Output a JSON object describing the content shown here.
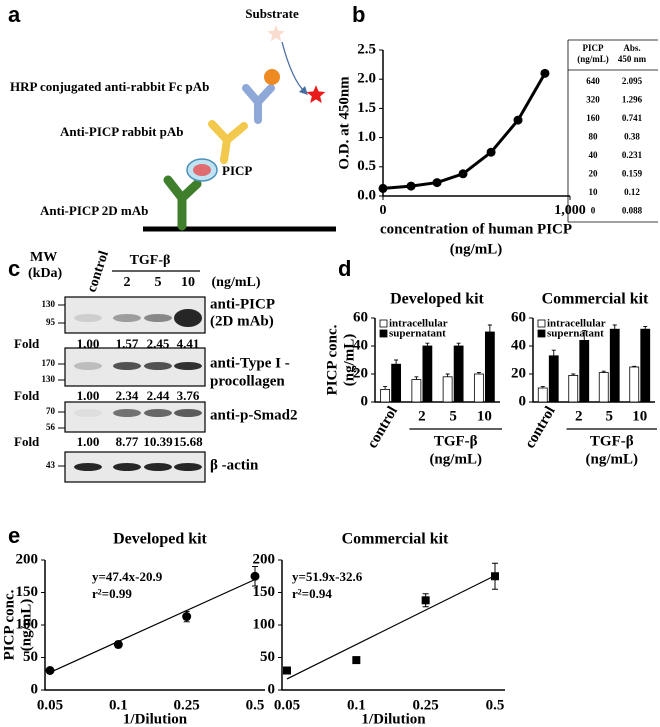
{
  "panel_labels": [
    "a",
    "b",
    "c",
    "d",
    "e"
  ],
  "diagram": {
    "substrate": "Substrate",
    "hrp": "HRP conjugated anti-rabbit Fc pAb",
    "rabbit": "Anti-PICP rabbit pAb",
    "antigen": "PICP",
    "capture": "Anti-PICP 2D mAb"
  },
  "table": {
    "header": [
      [
        "PICP",
        "(ng/mL)"
      ],
      [
        "Abs.",
        "450 nm"
      ]
    ],
    "rows": [
      [
        640,
        2.095
      ],
      [
        320,
        1.296
      ],
      [
        160,
        0.741
      ],
      [
        80,
        0.38
      ],
      [
        40,
        0.231
      ],
      [
        20,
        0.159
      ],
      [
        10,
        0.12
      ],
      [
        0,
        0.088
      ]
    ]
  },
  "blot": {
    "mw_title": [
      "MW",
      "(kDa)"
    ],
    "lanes": [
      "control",
      "2",
      "5",
      "10"
    ],
    "treatment": "TGF-β",
    "unit": "(ng/mL)",
    "fold_label": "Fold",
    "rows": [
      {
        "mw": [
          130,
          95
        ],
        "antibody": [
          "anti-PICP",
          "(2D mAb)"
        ],
        "fold": [
          "1.00",
          "1.57",
          "2.45",
          "4.41"
        ]
      },
      {
        "mw": [
          170,
          130
        ],
        "antibody": [
          "anti-Type I -",
          "procollagen"
        ],
        "fold": [
          "1.00",
          "2.34",
          "2.44",
          "3.76"
        ]
      },
      {
        "mw": [
          70,
          56
        ],
        "antibody": [
          "anti-p-Smad2"
        ],
        "fold": [
          "1.00",
          "8.77",
          "10.39",
          "15.68"
        ]
      },
      {
        "mw": [
          43
        ],
        "antibody": [
          "β -actin"
        ]
      }
    ]
  },
  "chart_data": [
    {
      "type": "line",
      "y_label": "O.D. at 450nm",
      "x_label": "concentration of human PICP",
      "x_unit": "(ng/mL)",
      "x": [
        0,
        150,
        289,
        428,
        578,
        722,
        866
      ],
      "values": [
        0.13,
        0.17,
        0.23,
        0.38,
        0.75,
        1.3,
        2.1
      ],
      "color": "#000000",
      "xlim": [
        0,
        1000
      ],
      "xticks": [
        0,
        {
          "value": 1000,
          "label": "1,000"
        }
      ],
      "ylim": [
        0,
        2.5
      ],
      "yticks": [
        {
          "value": 0,
          "label": "0.0"
        },
        0.5,
        {
          "value": 1,
          "label": "1.0"
        },
        1.5,
        {
          "value": 2,
          "label": "2.0"
        },
        2.5
      ]
    },
    {
      "type": "bar",
      "title": "Developed kit",
      "y_label": "PICP conc.",
      "y_unit": "(ng/mL)",
      "group_label": "TGF-β",
      "group_unit": "(ng/mL)",
      "categories": [
        "control",
        "2",
        "5",
        "10"
      ],
      "series": [
        {
          "name": "intracellular",
          "color": "#ffffff",
          "values": [
            9,
            16,
            18,
            20
          ],
          "errors": [
            2,
            2,
            2,
            1
          ]
        },
        {
          "name": "supernatant",
          "color": "#000000",
          "values": [
            27,
            40,
            40,
            50
          ],
          "errors": [
            3,
            2,
            2,
            5
          ]
        }
      ],
      "ylim": [
        0,
        60
      ],
      "yticks": [
        0,
        20,
        40,
        60
      ]
    },
    {
      "type": "bar",
      "title": "Commercial kit",
      "group_label": "TGF-β",
      "group_unit": "(ng/mL)",
      "categories": [
        "control",
        "2",
        "5",
        "10"
      ],
      "series": [
        {
          "name": "intracellular",
          "color": "#ffffff",
          "values": [
            10,
            19,
            21,
            25
          ],
          "errors": [
            1,
            1,
            1,
            0.5
          ]
        },
        {
          "name": "supernatant",
          "color": "#000000",
          "values": [
            33,
            44,
            52,
            52
          ],
          "errors": [
            4,
            7,
            3,
            2
          ]
        }
      ],
      "ylim": [
        0,
        60
      ],
      "yticks": [
        0,
        20,
        40,
        60
      ]
    },
    {
      "type": "scatter",
      "title": "Developed kit",
      "y_label": "PICP conc.",
      "y_unit": "(ng/mL)",
      "x_label": "1/Dilution",
      "equation": "y=47.4x-20.9",
      "r_squared": "r²=0.99",
      "marker": "circle",
      "categories": [
        "0.05",
        "0.1",
        "0.25",
        "0.5"
      ],
      "values": [
        30,
        70,
        113,
        175
      ],
      "errors": [
        0,
        5,
        8,
        15
      ],
      "trendline": [
        27,
        170
      ],
      "ylim": [
        0,
        200
      ],
      "yticks": [
        0,
        50,
        100,
        150,
        200
      ]
    },
    {
      "type": "scatter",
      "title": "Commercial kit",
      "x_label": "1/Dilution",
      "equation": "y=51.9x-32.6",
      "r_squared": "r²=0.94",
      "marker": "square",
      "categories": [
        "0.05",
        "0.1",
        "0.25",
        "0.5"
      ],
      "values": [
        30,
        46,
        138,
        175
      ],
      "errors": [
        5,
        0,
        10,
        20
      ],
      "trendline": [
        17,
        176
      ],
      "ylim": [
        0,
        200
      ],
      "yticks": [
        0,
        50,
        100,
        150,
        200
      ]
    }
  ]
}
